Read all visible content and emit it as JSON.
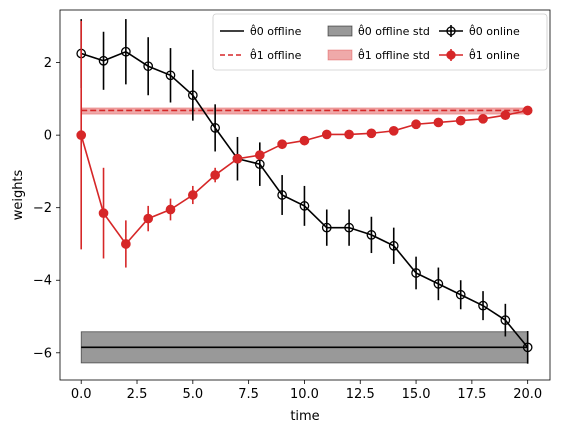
{
  "chart_data": {
    "type": "line",
    "xlabel": "time",
    "ylabel": "weights",
    "xlim": [
      -0.95,
      21.0
    ],
    "ylim": [
      -6.75,
      3.45
    ],
    "x_ticks": [
      "0.0",
      "2.5",
      "5.0",
      "7.5",
      "10.0",
      "12.5",
      "15.0",
      "17.5",
      "20.0"
    ],
    "y_ticks": [
      "2",
      "0",
      "−2",
      "−4",
      "−6"
    ],
    "x_tick_values": [
      0,
      2.5,
      5,
      7.5,
      10,
      12.5,
      15,
      17.5,
      20
    ],
    "y_tick_values": [
      2,
      0,
      -2,
      -4,
      -6
    ],
    "grid": false,
    "legend_position": "top-right",
    "series": [
      {
        "name": "θ̂0 offline",
        "kind": "hline",
        "color": "#000000",
        "dash": "solid",
        "x": [
          0,
          20
        ],
        "value": -5.85
      },
      {
        "name": "θ̂1 offline",
        "kind": "hline",
        "color": "#d62728",
        "dash": "dashed",
        "x": [
          0,
          20
        ],
        "value": 0.68
      },
      {
        "name": "θ̂0 offline std",
        "kind": "band",
        "color": "#808080",
        "edge": "#000000",
        "x": [
          0,
          20
        ],
        "low": -6.28,
        "high": -5.42
      },
      {
        "name": "θ̂1 offline std",
        "kind": "band",
        "color": "#d62728",
        "edge": "#d62728",
        "x": [
          0,
          20
        ],
        "low": 0.58,
        "high": 0.75
      },
      {
        "name": "θ̂0 online",
        "kind": "errorline",
        "color": "#000000",
        "marker": "open-circle",
        "x": [
          0,
          1,
          2,
          3,
          4,
          5,
          6,
          7,
          8,
          9,
          10,
          11,
          12,
          13,
          14,
          15,
          16,
          17,
          18,
          19,
          20
        ],
        "values": [
          2.25,
          2.05,
          2.3,
          1.9,
          1.65,
          1.1,
          0.2,
          -0.65,
          -0.8,
          -1.65,
          -1.95,
          -2.55,
          -2.55,
          -2.75,
          -3.05,
          -3.8,
          -4.1,
          -4.4,
          -4.7,
          -5.1,
          -5.85
        ],
        "errors": [
          0.95,
          0.8,
          0.9,
          0.8,
          0.75,
          0.7,
          0.65,
          0.6,
          0.6,
          0.55,
          0.55,
          0.5,
          0.5,
          0.5,
          0.5,
          0.45,
          0.45,
          0.4,
          0.4,
          0.45,
          0.45
        ]
      },
      {
        "name": "θ̂1 online",
        "kind": "errorline",
        "color": "#d62728",
        "marker": "filled-circle",
        "x": [
          0,
          1,
          2,
          3,
          4,
          5,
          6,
          7,
          8,
          9,
          10,
          11,
          12,
          13,
          14,
          15,
          16,
          17,
          18,
          19,
          20
        ],
        "values": [
          0.0,
          -2.15,
          -3.0,
          -2.3,
          -2.05,
          -1.65,
          -1.1,
          -0.65,
          -0.55,
          -0.25,
          -0.15,
          0.02,
          0.02,
          0.05,
          0.12,
          0.3,
          0.35,
          0.4,
          0.45,
          0.55,
          0.68
        ],
        "errors": [
          3.15,
          1.25,
          0.65,
          0.35,
          0.3,
          0.25,
          0.2,
          0.12,
          0.1,
          0.08,
          0.07,
          0.06,
          0.06,
          0.05,
          0.05,
          0.05,
          0.05,
          0.05,
          0.05,
          0.05,
          0.05
        ]
      }
    ]
  }
}
